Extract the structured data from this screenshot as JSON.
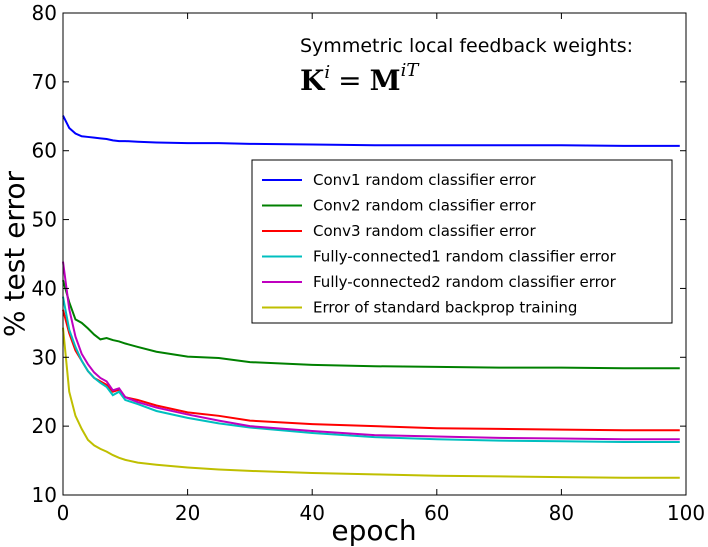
{
  "chart_data": {
    "type": "line",
    "annotation_line1": "Symmetric local feedback weights:",
    "annotation_line2_lhs": "K",
    "annotation_line2_lhs_sup": "i",
    "annotation_line2_eq": "=",
    "annotation_line2_rhs": "M",
    "annotation_line2_rhs_sup": "iT",
    "xlabel": "epoch",
    "ylabel": "% test error",
    "xlim": [
      0,
      100
    ],
    "ylim": [
      10,
      80
    ],
    "xticks": [
      0,
      20,
      40,
      60,
      80,
      100
    ],
    "yticks": [
      10,
      20,
      30,
      40,
      50,
      60,
      70,
      80
    ],
    "grid": false,
    "legend_position": "center-right",
    "x": [
      0,
      1,
      2,
      3,
      4,
      5,
      6,
      7,
      8,
      9,
      10,
      12,
      15,
      20,
      25,
      30,
      40,
      50,
      60,
      70,
      80,
      90,
      99
    ],
    "series": [
      {
        "name": "Conv1 random classifier error",
        "color": "#0000ff",
        "values": [
          65.1,
          63.3,
          62.5,
          62.1,
          62.0,
          61.9,
          61.8,
          61.7,
          61.5,
          61.4,
          61.4,
          61.3,
          61.2,
          61.1,
          61.1,
          61.0,
          60.9,
          60.8,
          60.8,
          60.8,
          60.8,
          60.7,
          60.7
        ]
      },
      {
        "name": "Conv2 random classifier error",
        "color": "#008000",
        "values": [
          41.2,
          38,
          35.5,
          35,
          34.2,
          33.3,
          32.6,
          32.8,
          32.5,
          32.3,
          32,
          31.5,
          30.8,
          30.1,
          29.9,
          29.3,
          28.9,
          28.7,
          28.6,
          28.5,
          28.5,
          28.4,
          28.4
        ]
      },
      {
        "name": "Conv3 random classifier error",
        "color": "#ff0000",
        "values": [
          36.9,
          33.5,
          31,
          29.5,
          28,
          27,
          26.5,
          26,
          25,
          25.3,
          24.2,
          23.8,
          23,
          22,
          21.5,
          20.8,
          20.3,
          20.0,
          19.7,
          19.6,
          19.5,
          19.4,
          19.4
        ]
      },
      {
        "name": "Fully-connected1 random classifier error",
        "color": "#00bfbf",
        "values": [
          38.8,
          34,
          31.5,
          29.5,
          28,
          27,
          26.3,
          25.7,
          24.5,
          25,
          23.8,
          23.2,
          22.2,
          21.2,
          20.4,
          19.8,
          19.0,
          18.4,
          18.1,
          17.9,
          17.8,
          17.7,
          17.7
        ]
      },
      {
        "name": "Fully-connected2 random classifier error",
        "color": "#bf00bf",
        "values": [
          43.9,
          37,
          33,
          30.5,
          29,
          27.8,
          27,
          26.5,
          25.2,
          25.5,
          24.2,
          23.5,
          22.7,
          21.7,
          20.8,
          20.0,
          19.3,
          18.7,
          18.5,
          18.3,
          18.2,
          18.1,
          18.1
        ]
      },
      {
        "name": "Error of standard backprop training",
        "color": "#bfbf00",
        "values": [
          34.3,
          25,
          21.5,
          19.6,
          18,
          17.2,
          16.7,
          16.3,
          15.8,
          15.4,
          15.1,
          14.7,
          14.4,
          14.0,
          13.7,
          13.5,
          13.2,
          13.0,
          12.8,
          12.7,
          12.6,
          12.5,
          12.5
        ]
      }
    ]
  }
}
